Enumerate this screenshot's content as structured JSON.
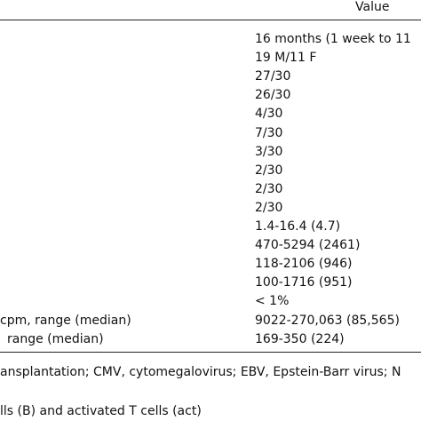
{
  "table": {
    "header": "Value",
    "rows": [
      {
        "value": "16 months (1 week to 11"
      },
      {
        "value": "19 M/11 F"
      },
      {
        "value": "27/30"
      },
      {
        "value": "26/30"
      },
      {
        "value": "4/30"
      },
      {
        "value": "7/30"
      },
      {
        "value": "3/30"
      },
      {
        "value": "2/30"
      },
      {
        "value": "2/30"
      },
      {
        "value": "2/30"
      },
      {
        "value": "1.4-16.4 (4.7)"
      },
      {
        "value": "470-5294 (2461)"
      },
      {
        "value": "118-2106 (946)"
      },
      {
        "value": "100-1716 (951)"
      },
      {
        "value": "< 1%"
      },
      {
        "label": "cpm, range (median)",
        "value": "9022-270,063 (85,565)"
      },
      {
        "label": "range (median)",
        "value": "169-350 (224)"
      }
    ]
  },
  "footnotes": [
    "ansplantation; CMV, cytomegalovirus; EBV, Epstein-Barr virus; N",
    "lls (B) and activated T cells (act)"
  ]
}
